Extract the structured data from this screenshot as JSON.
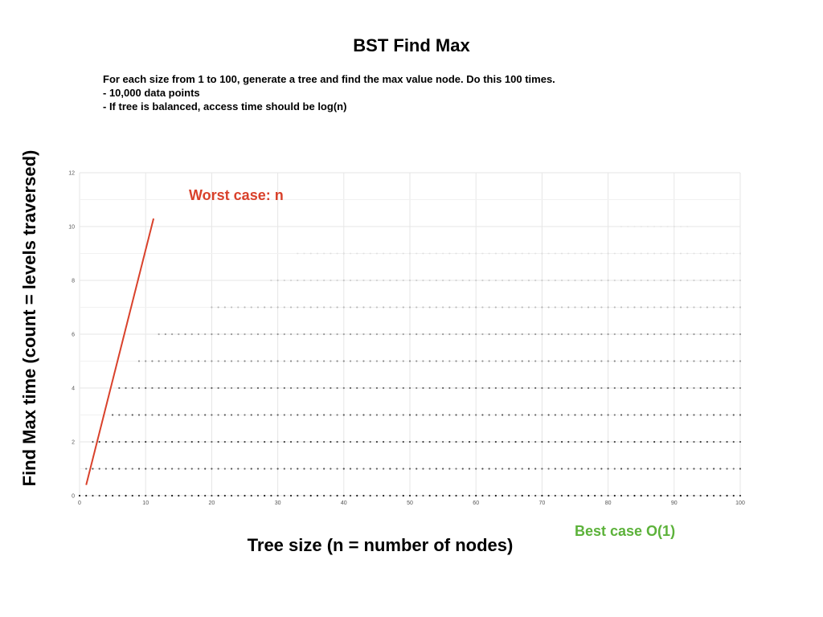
{
  "title": "BST Find Max",
  "notes": [
    "For each size from 1 to 100, generate a tree and find the max value node. Do this 100 times.",
    "-  10,000 data points",
    "-  If tree is balanced, access time should be log(n)"
  ],
  "annotations": {
    "worst": "Worst case: n",
    "best": "Best case O(1)"
  },
  "colors": {
    "worst": "#d9412b",
    "best": "#5cb23a",
    "points": "#000000",
    "grid": "#e6e6e6"
  },
  "chart_data": {
    "type": "scatter",
    "xlabel": "Tree size (n = number of nodes)",
    "ylabel": "Find Max time (count = levels traversed)",
    "xlim": [
      0,
      100
    ],
    "ylim": [
      0,
      12
    ],
    "xticks": [
      "0",
      "10",
      "20",
      "30",
      "40",
      "50",
      "60",
      "70",
      "80",
      "90",
      "100"
    ],
    "yticks": [
      "0",
      "2",
      "4",
      "6",
      "8",
      "10",
      "12"
    ],
    "grid": true,
    "worst_case_line": {
      "x": [
        1,
        11.2
      ],
      "y": [
        0.4,
        10.3
      ]
    },
    "scatter_levels": [
      {
        "y": 0,
        "x_start": 0,
        "x_end": 100,
        "intensity": 0.9
      },
      {
        "y": 1,
        "x_start": 1,
        "x_end": 100,
        "intensity": 0.7
      },
      {
        "y": 2,
        "x_start": 2,
        "x_end": 100,
        "intensity": 0.75
      },
      {
        "y": 3,
        "x_start": 5,
        "x_end": 100,
        "intensity": 0.65
      },
      {
        "y": 4,
        "x_start": 6,
        "x_end": 100,
        "intensity": 0.6
      },
      {
        "y": 5,
        "x_start": 9,
        "x_end": 100,
        "intensity": 0.45
      },
      {
        "y": 6,
        "x_start": 12,
        "x_end": 100,
        "intensity": 0.38
      },
      {
        "y": 7,
        "x_start": 20,
        "x_end": 100,
        "intensity": 0.25
      },
      {
        "y": 8,
        "x_start": 29,
        "x_end": 100,
        "intensity": 0.15
      },
      {
        "y": 9,
        "x_start": 33,
        "x_end": 100,
        "intensity": 0.08
      },
      {
        "y": 10,
        "x_start": 82,
        "x_end": 92,
        "intensity": 0.03
      }
    ]
  }
}
